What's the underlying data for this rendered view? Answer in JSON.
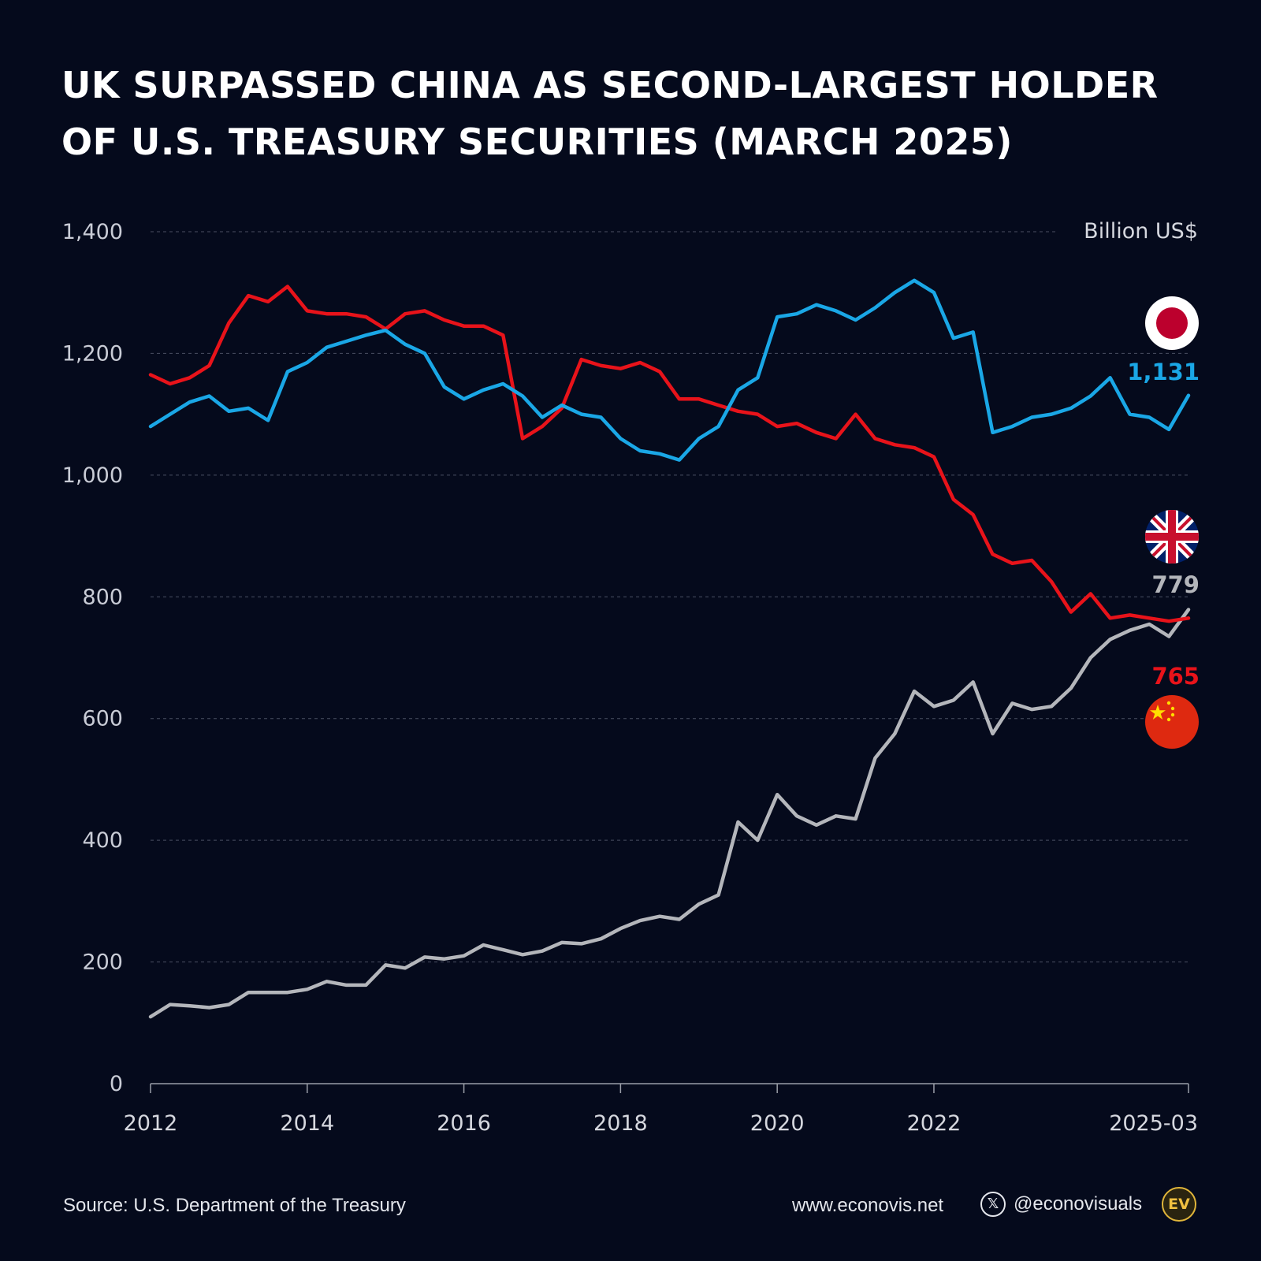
{
  "title": {
    "line1": "UK SURPASSED CHINA AS SECOND-LARGEST HOLDER",
    "line2": "OF U.S. TREASURY SECURITIES (MARCH 2025)"
  },
  "footer": {
    "source": "Source: U.S. Department of the Treasury",
    "website": "www.econovis.net",
    "x_icon": "𝕏",
    "handle": "@econovisuals",
    "logo_text": "EV"
  },
  "colors": {
    "background": "#050a1c",
    "japan": "#1aa7e6",
    "china": "#e8131a",
    "uk": "#b4b6bb",
    "grid": "#4a4f62"
  },
  "chart_data": {
    "type": "line",
    "title": "UK SURPASSED CHINA AS SECOND-LARGEST HOLDER OF U.S. TREASURY SECURITIES (MARCH 2025)",
    "ylabel": "Billion US$",
    "xlabel": "",
    "ylim": [
      0,
      1400
    ],
    "xlim": [
      2012.0,
      2025.25
    ],
    "grid": true,
    "y_ticks": [
      0,
      200,
      400,
      600,
      800,
      1000,
      1200,
      1400
    ],
    "y_tick_labels": [
      "0",
      "200",
      "400",
      "600",
      "800",
      "1,000",
      "1,200",
      "1,400"
    ],
    "x_ticks": [
      2012,
      2014,
      2016,
      2018,
      2020,
      2022,
      2025.25
    ],
    "x_tick_labels": [
      "2012",
      "2014",
      "2016",
      "2018",
      "2020",
      "2022",
      "2025-03"
    ],
    "series": [
      {
        "name": "Japan",
        "icon": "japan-flag-icon",
        "end_label": "1,131",
        "color": "#1aa7e6",
        "x": [
          2012.0,
          2012.25,
          2012.5,
          2012.75,
          2013.0,
          2013.25,
          2013.5,
          2013.75,
          2014.0,
          2014.25,
          2014.5,
          2014.75,
          2015.0,
          2015.25,
          2015.5,
          2015.75,
          2016.0,
          2016.25,
          2016.5,
          2016.75,
          2017.0,
          2017.25,
          2017.5,
          2017.75,
          2018.0,
          2018.25,
          2018.5,
          2018.75,
          2019.0,
          2019.25,
          2019.5,
          2019.75,
          2020.0,
          2020.25,
          2020.5,
          2020.75,
          2021.0,
          2021.25,
          2021.5,
          2021.75,
          2022.0,
          2022.25,
          2022.5,
          2022.75,
          2023.0,
          2023.25,
          2023.5,
          2023.75,
          2024.0,
          2024.25,
          2024.5,
          2024.75,
          2025.0,
          2025.25
        ],
        "values": [
          1080,
          1100,
          1120,
          1130,
          1105,
          1110,
          1090,
          1170,
          1185,
          1210,
          1220,
          1230,
          1238,
          1215,
          1200,
          1145,
          1125,
          1140,
          1150,
          1130,
          1095,
          1115,
          1100,
          1095,
          1060,
          1040,
          1035,
          1025,
          1060,
          1080,
          1140,
          1160,
          1260,
          1265,
          1280,
          1270,
          1255,
          1275,
          1300,
          1320,
          1300,
          1225,
          1235,
          1070,
          1080,
          1095,
          1100,
          1110,
          1130,
          1160,
          1100,
          1095,
          1075,
          1131
        ]
      },
      {
        "name": "China",
        "icon": "china-flag-icon",
        "end_label": "765",
        "color": "#e8131a",
        "x": [
          2012.0,
          2012.25,
          2012.5,
          2012.75,
          2013.0,
          2013.25,
          2013.5,
          2013.75,
          2014.0,
          2014.25,
          2014.5,
          2014.75,
          2015.0,
          2015.25,
          2015.5,
          2015.75,
          2016.0,
          2016.25,
          2016.5,
          2016.75,
          2017.0,
          2017.25,
          2017.5,
          2017.75,
          2018.0,
          2018.25,
          2018.5,
          2018.75,
          2019.0,
          2019.25,
          2019.5,
          2019.75,
          2020.0,
          2020.25,
          2020.5,
          2020.75,
          2021.0,
          2021.25,
          2021.5,
          2021.75,
          2022.0,
          2022.25,
          2022.5,
          2022.75,
          2023.0,
          2023.25,
          2023.5,
          2023.75,
          2024.0,
          2024.25,
          2024.5,
          2024.75,
          2025.0,
          2025.25
        ],
        "values": [
          1165,
          1150,
          1160,
          1180,
          1250,
          1295,
          1285,
          1310,
          1270,
          1265,
          1265,
          1260,
          1240,
          1265,
          1270,
          1255,
          1245,
          1245,
          1230,
          1060,
          1080,
          1110,
          1190,
          1180,
          1175,
          1185,
          1170,
          1125,
          1125,
          1115,
          1105,
          1100,
          1080,
          1085,
          1070,
          1060,
          1100,
          1060,
          1050,
          1045,
          1030,
          960,
          935,
          870,
          855,
          860,
          825,
          775,
          805,
          765,
          770,
          765,
          760,
          765
        ]
      },
      {
        "name": "United Kingdom",
        "icon": "uk-flag-icon",
        "end_label": "779",
        "color": "#b4b6bb",
        "x": [
          2012.0,
          2012.25,
          2012.5,
          2012.75,
          2013.0,
          2013.25,
          2013.5,
          2013.75,
          2014.0,
          2014.25,
          2014.5,
          2014.75,
          2015.0,
          2015.25,
          2015.5,
          2015.75,
          2016.0,
          2016.25,
          2016.5,
          2016.75,
          2017.0,
          2017.25,
          2017.5,
          2017.75,
          2018.0,
          2018.25,
          2018.5,
          2018.75,
          2019.0,
          2019.25,
          2019.5,
          2019.75,
          2020.0,
          2020.25,
          2020.5,
          2020.75,
          2021.0,
          2021.25,
          2021.5,
          2021.75,
          2022.0,
          2022.25,
          2022.5,
          2022.75,
          2023.0,
          2023.25,
          2023.5,
          2023.75,
          2024.0,
          2024.25,
          2024.5,
          2024.75,
          2025.0,
          2025.25
        ],
        "values": [
          110,
          130,
          128,
          125,
          130,
          150,
          150,
          150,
          155,
          168,
          162,
          162,
          195,
          190,
          208,
          205,
          210,
          228,
          220,
          212,
          218,
          232,
          230,
          238,
          255,
          268,
          275,
          270,
          295,
          310,
          430,
          400,
          475,
          440,
          425,
          440,
          435,
          535,
          575,
          645,
          620,
          630,
          660,
          575,
          625,
          615,
          620,
          650,
          700,
          730,
          745,
          755,
          735,
          779
        ]
      }
    ]
  }
}
